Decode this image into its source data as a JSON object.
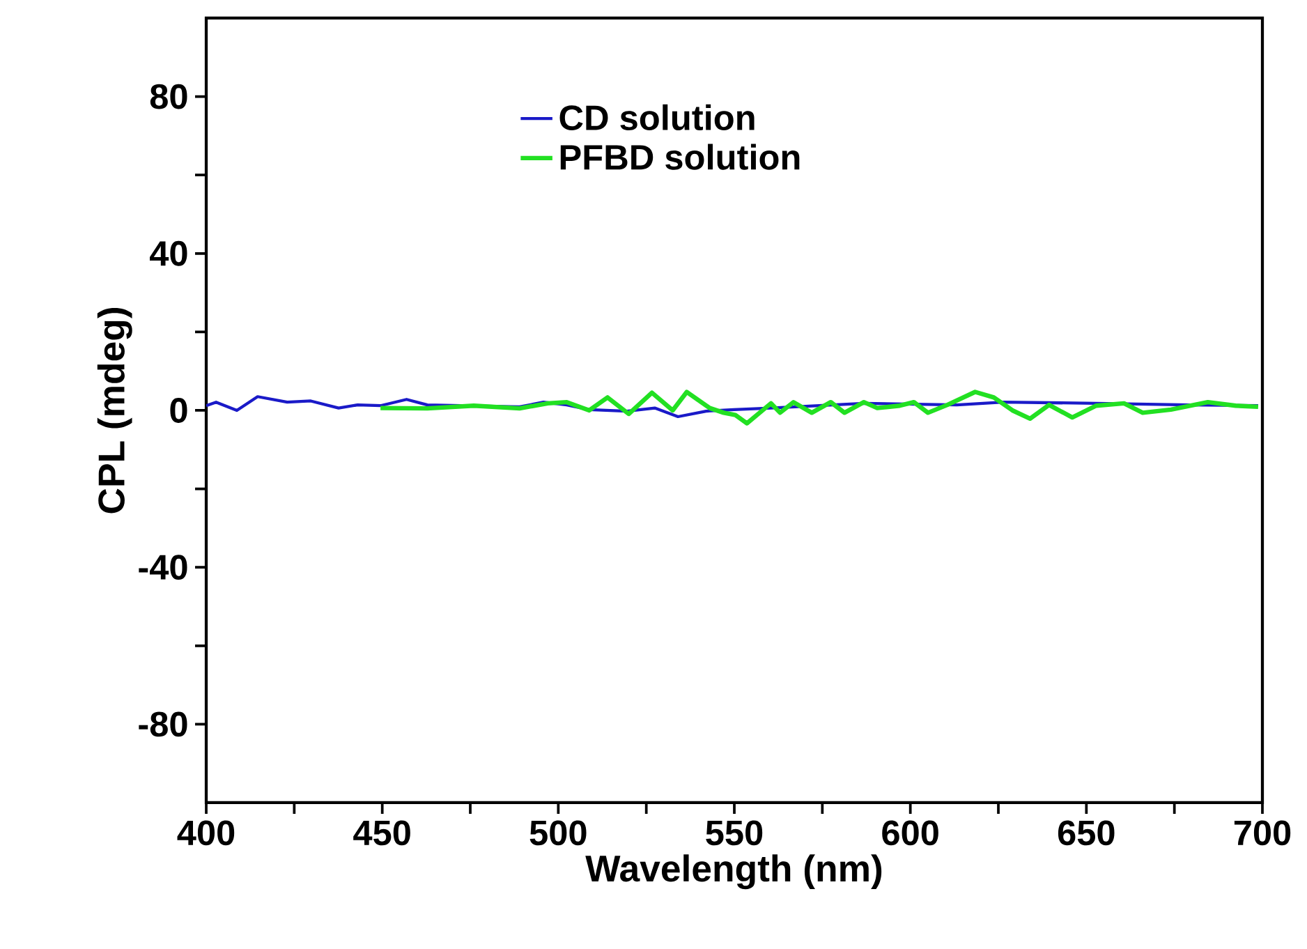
{
  "chart_data": {
    "type": "line",
    "xlabel": "Wavelength (nm)",
    "ylabel": "CPL (mdeg)",
    "xlim": [
      400,
      700
    ],
    "ylim": [
      -100,
      100
    ],
    "xticks": [
      400,
      {
        "value": 425,
        "label": null
      },
      450,
      {
        "value": 475,
        "label": null
      },
      500,
      {
        "value": 525,
        "label": null
      },
      550,
      {
        "value": 575,
        "label": null
      },
      600,
      {
        "value": 625,
        "label": null
      },
      650,
      {
        "value": 675,
        "label": null
      },
      700
    ],
    "yticks": [
      -80,
      {
        "value": -60,
        "label": null
      },
      -40,
      {
        "value": -20,
        "label": null
      },
      0,
      {
        "value": 20,
        "label": null
      },
      40,
      {
        "value": 60,
        "label": null
      },
      80
    ],
    "legend": "top",
    "grid": false,
    "series": [
      {
        "name": "CD solution",
        "color": "#1a1ac8",
        "x": [
          400,
          402.8,
          408.7,
          414.6,
          423,
          429.7,
          437.6,
          443,
          449.5,
          456.9,
          462.8,
          489,
          495.8,
          502.4,
          508.8,
          519.5,
          527.4,
          534,
          542,
          549.9,
          560.4,
          586.8,
          613.2,
          626.4,
          652.8,
          679,
          698.8
        ],
        "values": [
          1.2,
          2.1,
          0,
          3.5,
          2.1,
          2.4,
          0.6,
          1.4,
          1.2,
          2.8,
          1.4,
          0.9,
          2.1,
          1.4,
          0.2,
          -0.2,
          0.6,
          -1.6,
          -0.2,
          0.2,
          0.6,
          1.8,
          1.4,
          2.1,
          1.8,
          1.4,
          1.2
        ]
      },
      {
        "name": "PFBD solution",
        "color": "#22e022",
        "x": [
          449.5,
          462.8,
          476,
          489,
          497,
          502.4,
          508.8,
          514,
          520,
          526.6,
          532.5,
          536.5,
          543,
          547,
          550.3,
          553.6,
          560.4,
          563,
          566.8,
          572,
          577.4,
          581.3,
          586.8,
          590.6,
          597,
          601,
          605,
          610.5,
          618.4,
          623.7,
          629,
          634,
          639.4,
          646,
          652.8,
          660.7,
          666,
          674,
          684.5,
          692.4,
          698.8
        ],
        "values": [
          0.6,
          0.5,
          1.2,
          0.5,
          1.8,
          2.1,
          0,
          3.3,
          -0.9,
          4.5,
          0,
          4.7,
          0.6,
          -0.6,
          -1.2,
          -3.3,
          1.8,
          -0.6,
          2.1,
          -0.6,
          2.1,
          -0.6,
          2.1,
          0.6,
          1.2,
          2.1,
          -0.6,
          1.4,
          4.7,
          3.3,
          0,
          -2.1,
          1.4,
          -1.8,
          1.2,
          1.8,
          -0.6,
          0.2,
          2.1,
          1.2,
          0.9
        ]
      }
    ]
  }
}
